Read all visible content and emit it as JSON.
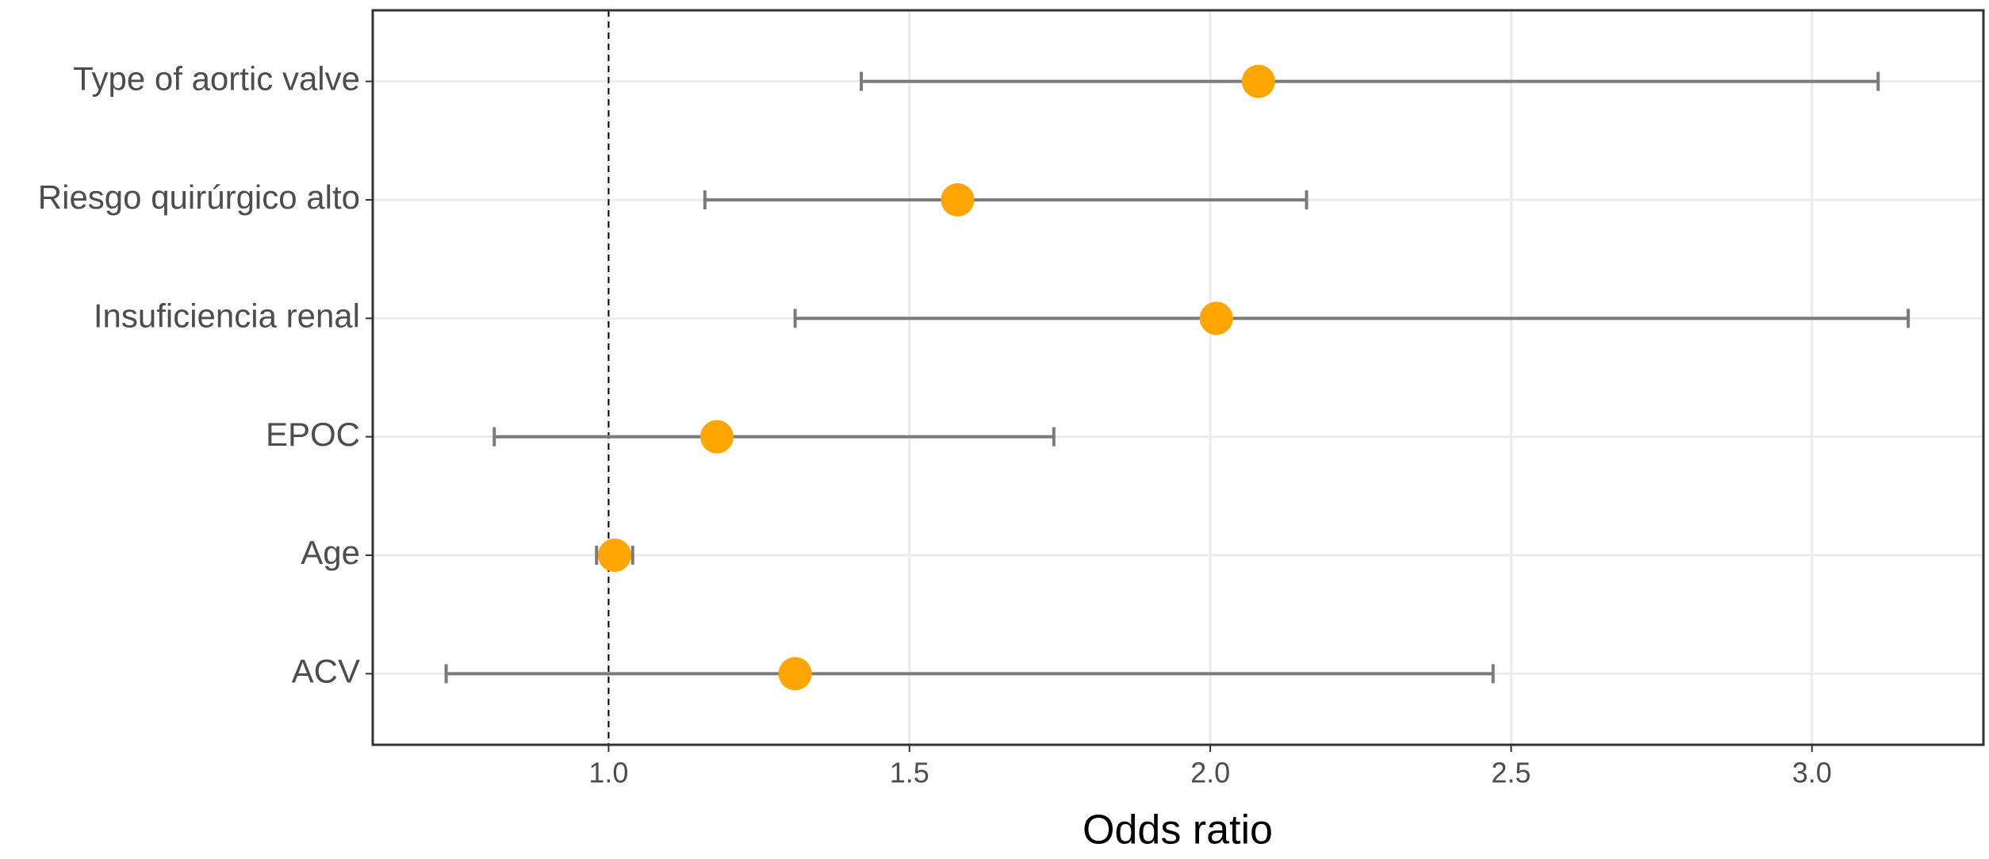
{
  "chart_data": {
    "type": "forest",
    "x_label": "Odds ratio",
    "categories": [
      "Type of aortic valve",
      "Riesgo quirúrgico alto",
      "Insuficiencia renal",
      "EPOC",
      "Age",
      "ACV"
    ],
    "values": [
      2.08,
      1.58,
      2.01,
      1.18,
      1.01,
      1.31
    ],
    "lower": [
      1.42,
      1.16,
      1.31,
      0.81,
      0.98,
      0.73
    ],
    "upper": [
      3.11,
      2.16,
      3.16,
      1.74,
      1.04,
      2.47
    ],
    "point_color": "#FFA500",
    "bar_color": "#7a7a7a",
    "xlim": [
      0.608,
      3.285
    ],
    "xticks": [
      {
        "value": 1,
        "label": "1.0"
      },
      1.5,
      {
        "value": 2,
        "label": "2.0"
      },
      2.5,
      {
        "value": 3,
        "label": "3.0"
      }
    ],
    "reference_line": 1,
    "grid": true
  }
}
